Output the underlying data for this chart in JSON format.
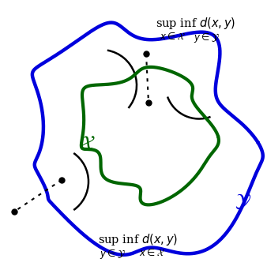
{
  "blue_color": "#0000dd",
  "green_color": "#006600",
  "black_color": "#000000",
  "background": "#ffffff",
  "figsize": [
    3.38,
    3.42
  ],
  "dpi": 100,
  "label_X": "$\\mathcal{X}$",
  "label_Y": "$\\mathcal{Y}$"
}
